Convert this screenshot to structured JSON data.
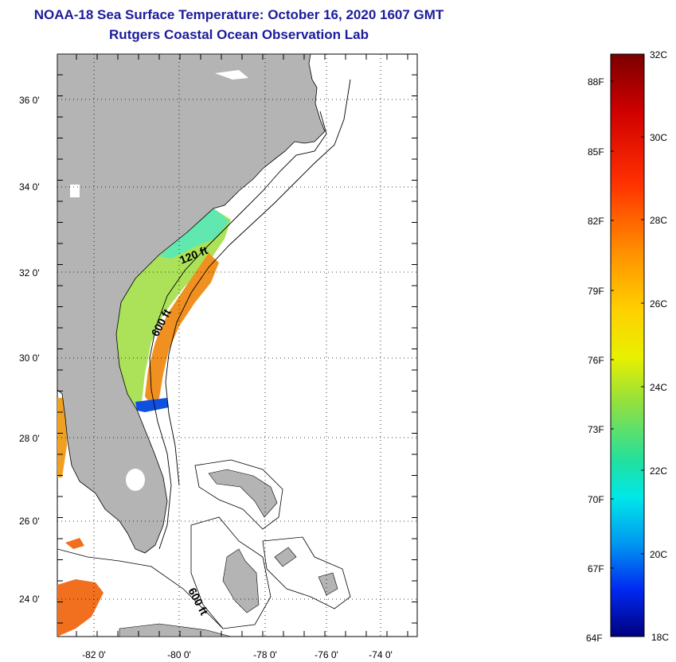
{
  "header": {
    "title": "NOAA-18 Sea Surface Temperature:  October 16, 2020 1607 GMT",
    "subtitle": "Rutgers Coastal Ocean Observation Lab"
  },
  "map": {
    "lon_range": [
      -83,
      -73
    ],
    "lat_range": [
      23,
      37
    ],
    "x_ticks": [
      "-82 0'",
      "-80 0'",
      "-78 0'",
      "-76 0'",
      "-74 0'"
    ],
    "y_ticks": [
      "36 0'",
      "34 0'",
      "32 0'",
      "30 0'",
      "28 0'",
      "26 0'",
      "24 0'"
    ],
    "depth_labels": [
      "120 ft",
      "600 ft",
      "600 ft"
    ],
    "colors": {
      "land": "#b4b4b4",
      "ocean": "#ffffff",
      "title": "#1c1c9c"
    }
  },
  "colorbar": {
    "celsius_labels": [
      "32C",
      "30C",
      "28C",
      "26C",
      "24C",
      "22C",
      "20C",
      "18C"
    ],
    "fahrenheit_labels": [
      "88F",
      "85F",
      "82F",
      "79F",
      "76F",
      "73F",
      "70F",
      "67F",
      "64F"
    ],
    "range_c": [
      18,
      32
    ]
  }
}
